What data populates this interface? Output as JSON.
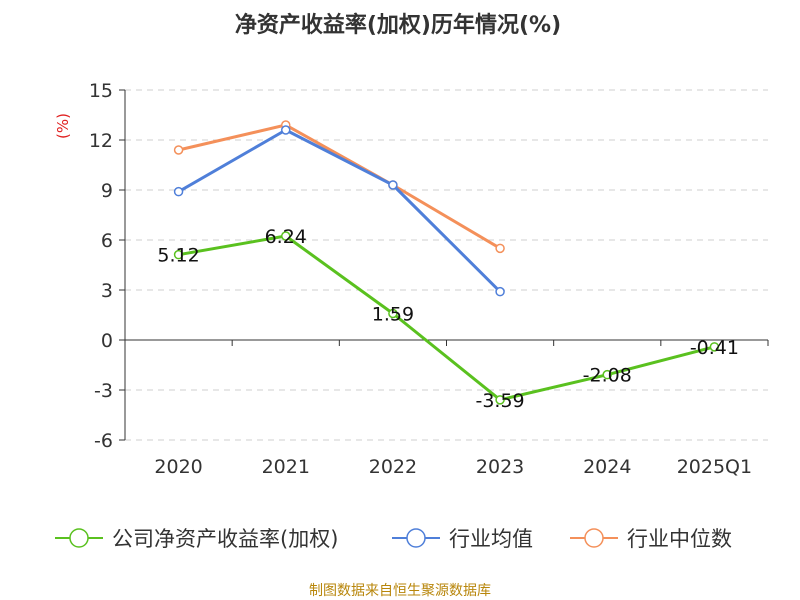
{
  "chart_data": {
    "type": "line",
    "title": "净资产收益率(加权)历年情况(%)",
    "ylabel": "(%)",
    "categories": [
      "2020",
      "2021",
      "2022",
      "2023",
      "2024",
      "2025Q1"
    ],
    "ylim": [
      -6,
      15
    ],
    "yticks": [
      "15",
      "12",
      "9",
      "6",
      "3",
      "0",
      "-3",
      "-6"
    ],
    "grid": true,
    "legend_position": "bottom",
    "series": [
      {
        "name": "公司净资产收益率(加权)",
        "color": "#5ac11f",
        "values": [
          5.12,
          6.24,
          1.59,
          -3.59,
          -2.08,
          -0.41
        ],
        "labels": [
          "5.12",
          "6.24",
          "1.59",
          "-3.59",
          "-2.08",
          "-0.41"
        ]
      },
      {
        "name": "行业均值",
        "color": "#4f7fd9",
        "values": [
          8.9,
          12.6,
          9.3,
          2.9,
          null,
          null
        ]
      },
      {
        "name": "行业中位数",
        "color": "#f4905a",
        "values": [
          11.4,
          12.9,
          9.3,
          5.5,
          null,
          null
        ]
      }
    ]
  },
  "source": "制图数据来自恒生聚源数据库"
}
